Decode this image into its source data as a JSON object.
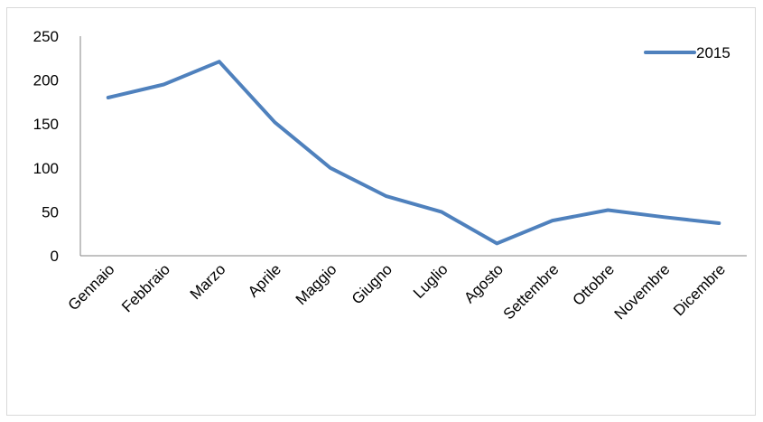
{
  "chart_data": {
    "type": "line",
    "title": "",
    "xlabel": "",
    "ylabel": "",
    "categories": [
      "Gennaio",
      "Febbraio",
      "Marzo",
      "Aprile",
      "Maggio",
      "Giugno",
      "Luglio",
      "Agosto",
      "Settembre",
      "Ottobre",
      "Novembre",
      "Dicembre"
    ],
    "series": [
      {
        "name": "2015",
        "values": [
          180,
          195,
          221,
          152,
          100,
          68,
          50,
          14,
          40,
          52,
          44,
          37
        ],
        "color": "#4f81bd"
      }
    ],
    "ylim": [
      0,
      250
    ],
    "yticks": [
      0,
      50,
      100,
      150,
      200,
      250
    ],
    "grid": false,
    "legend_position": "top-right"
  }
}
